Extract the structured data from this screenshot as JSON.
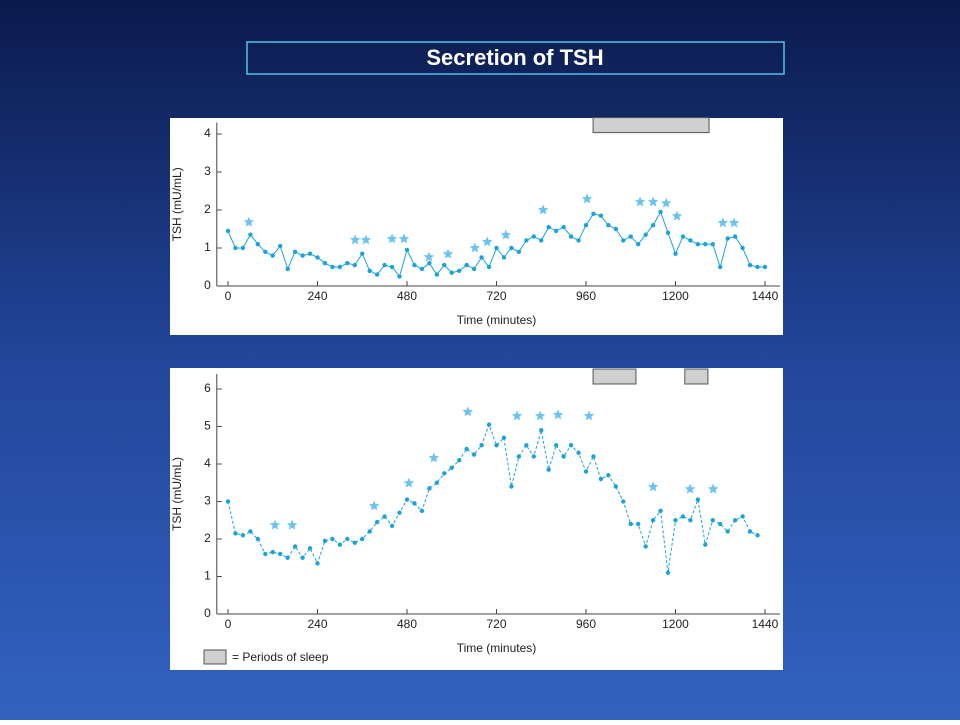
{
  "title": "Secretion of TSH",
  "chart_data": [
    {
      "type": "line",
      "ylabel": "TSH (mU/mL)",
      "xlabel": "Time (minutes)",
      "xlim": [
        -30,
        1480
      ],
      "xticks": [
        0,
        240,
        480,
        720,
        960,
        1200,
        1440
      ],
      "ylim": [
        0,
        4.3
      ],
      "yticks": [
        0,
        1,
        2,
        3,
        4
      ],
      "line_style": "solid",
      "x": [
        0,
        20,
        40,
        60,
        80,
        100,
        120,
        140,
        160,
        180,
        200,
        220,
        240,
        260,
        280,
        300,
        320,
        340,
        360,
        380,
        400,
        420,
        440,
        460,
        480,
        500,
        520,
        540,
        560,
        580,
        600,
        620,
        640,
        660,
        680,
        700,
        720,
        740,
        760,
        780,
        800,
        820,
        840,
        860,
        880,
        900,
        920,
        940,
        960,
        980,
        1000,
        1020,
        1040,
        1060,
        1080,
        1100,
        1120,
        1140,
        1160,
        1180,
        1200,
        1220,
        1240,
        1260,
        1280,
        1300,
        1320,
        1340,
        1360,
        1380,
        1400,
        1420,
        1440
      ],
      "series": [
        {
          "color": "#1aa3d9",
          "values": [
            1.45,
            1.0,
            1.0,
            1.35,
            1.1,
            0.9,
            0.8,
            1.05,
            0.45,
            0.9,
            0.8,
            0.85,
            0.75,
            0.6,
            0.5,
            0.5,
            0.6,
            0.55,
            0.85,
            0.4,
            0.3,
            0.55,
            0.5,
            0.25,
            0.95,
            0.55,
            0.45,
            0.6,
            0.3,
            0.55,
            0.35,
            0.4,
            0.55,
            0.45,
            0.75,
            0.5,
            1.0,
            0.75,
            1.0,
            0.9,
            1.2,
            1.3,
            1.2,
            1.55,
            1.45,
            1.55,
            1.3,
            1.2,
            1.6,
            1.9,
            1.85,
            1.6,
            1.5,
            1.2,
            1.3,
            1.1,
            1.35,
            1.6,
            1.95,
            1.4,
            0.85,
            1.3,
            1.2,
            1.1,
            1.1,
            1.1,
            0.5,
            1.25,
            1.3,
            1.0,
            0.55,
            0.5,
            0.5
          ]
        }
      ],
      "pulses": {
        "color": "#6cc4ee",
        "x": [
          56,
          341,
          370,
          440,
          472,
          539,
          590,
          662,
          695,
          745,
          845,
          963,
          1105,
          1140,
          1175,
          1204,
          1327,
          1357
        ],
        "y": [
          1.68,
          1.21,
          1.21,
          1.24,
          1.24,
          0.76,
          0.84,
          1.0,
          1.16,
          1.34,
          2.0,
          2.29,
          2.21,
          2.21,
          2.18,
          1.84,
          1.66,
          1.66
        ]
      },
      "sleep_periods": [
        [
          979,
          1290
        ]
      ]
    },
    {
      "type": "line",
      "ylabel": "TSH (mU/mL)",
      "xlabel": "Time (minutes)",
      "xlim": [
        -30,
        1480
      ],
      "xticks": [
        0,
        240,
        480,
        720,
        960,
        1200,
        1440
      ],
      "ylim": [
        0,
        6.4
      ],
      "yticks": [
        0,
        1,
        2,
        3,
        4,
        5,
        6
      ],
      "line_style": "dashed",
      "x": [
        0,
        20,
        40,
        60,
        80,
        100,
        120,
        140,
        160,
        180,
        200,
        220,
        240,
        260,
        280,
        300,
        320,
        340,
        360,
        380,
        400,
        420,
        440,
        460,
        480,
        500,
        520,
        540,
        560,
        580,
        600,
        620,
        640,
        660,
        680,
        700,
        720,
        740,
        760,
        780,
        800,
        820,
        840,
        860,
        880,
        900,
        920,
        940,
        960,
        980,
        1000,
        1020,
        1040,
        1060,
        1080,
        1100,
        1120,
        1140,
        1160,
        1180,
        1200,
        1220,
        1240,
        1260,
        1280,
        1300,
        1320,
        1340,
        1360,
        1380,
        1400,
        1420
      ],
      "series": [
        {
          "color": "#1aa3d9",
          "values": [
            3.0,
            2.15,
            2.1,
            2.2,
            2.0,
            1.6,
            1.65,
            1.6,
            1.5,
            1.8,
            1.5,
            1.75,
            1.35,
            1.95,
            2.0,
            1.85,
            2.0,
            1.9,
            2.0,
            2.2,
            2.45,
            2.6,
            2.35,
            2.7,
            3.05,
            2.95,
            2.75,
            3.35,
            3.5,
            3.75,
            3.9,
            4.1,
            4.4,
            4.25,
            4.5,
            5.05,
            4.5,
            4.7,
            3.4,
            4.2,
            4.5,
            4.2,
            4.9,
            3.85,
            4.5,
            4.2,
            4.5,
            4.3,
            3.8,
            4.2,
            3.6,
            3.7,
            3.4,
            3.0,
            2.4,
            2.4,
            1.8,
            2.5,
            2.75,
            1.1,
            2.5,
            2.6,
            2.5,
            3.05,
            1.85,
            2.5,
            2.4,
            2.2,
            2.5,
            2.6,
            2.2,
            2.1
          ]
        }
      ],
      "pulses": {
        "color": "#6cc4ee",
        "x": [
          126,
          172,
          392,
          485,
          552,
          643,
          775,
          837,
          885,
          968,
          1140,
          1239,
          1301
        ],
        "y": [
          2.37,
          2.37,
          2.88,
          3.49,
          4.16,
          5.39,
          5.28,
          5.28,
          5.31,
          5.28,
          3.39,
          3.33,
          3.33
        ]
      },
      "sleep_periods": [
        [
          979,
          1094
        ],
        [
          1225,
          1287
        ]
      ],
      "sleep_legend": "= Periods of sleep"
    }
  ]
}
